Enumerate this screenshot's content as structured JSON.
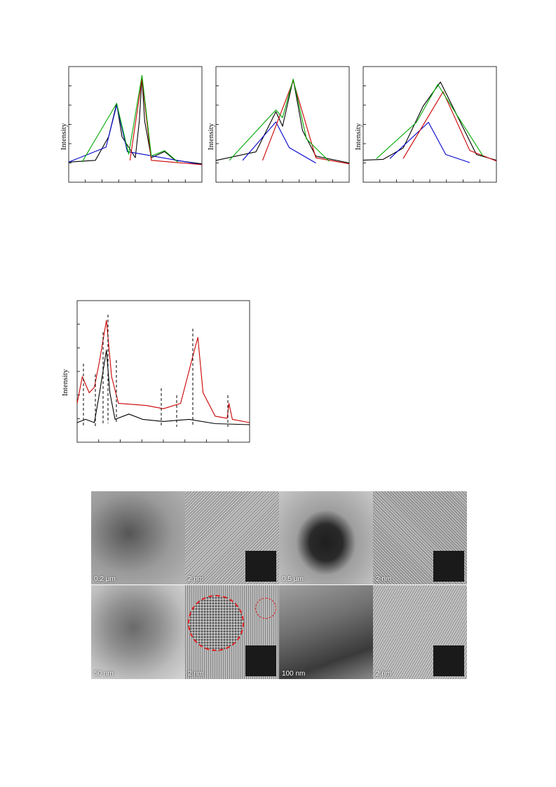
{
  "chart_data": [
    {
      "type": "line",
      "ylabel": "Intensity",
      "series": [
        {
          "color": "#000000",
          "values": [
            [
              0,
              0.03
            ],
            [
              0.2,
              0.05
            ],
            [
              0.3,
              0.32
            ],
            [
              0.36,
              0.7
            ],
            [
              0.4,
              0.32
            ],
            [
              0.5,
              0.08
            ],
            [
              0.53,
              0.5
            ],
            [
              0.55,
              1.0
            ],
            [
              0.57,
              0.5
            ],
            [
              0.62,
              0.08
            ],
            [
              0.72,
              0.15
            ],
            [
              0.8,
              0.05
            ],
            [
              1,
              0.01
            ]
          ]
        },
        {
          "color": "#0000cc",
          "values": [
            [
              0,
              0.03
            ],
            [
              0.28,
              0.2
            ],
            [
              0.36,
              0.68
            ],
            [
              0.44,
              0.15
            ],
            [
              1,
              0.0
            ]
          ]
        },
        {
          "color": "#cc0000",
          "values": [
            [
              0.46,
              0.05
            ],
            [
              0.55,
              0.98
            ],
            [
              0.62,
              0.05
            ],
            [
              1,
              0.0
            ]
          ]
        },
        {
          "color": "#00aa00",
          "values": [
            [
              0.1,
              0.03
            ],
            [
              0.36,
              0.7
            ],
            [
              0.45,
              0.12
            ],
            [
              0.55,
              1.02
            ],
            [
              0.62,
              0.1
            ],
            [
              0.72,
              0.16
            ],
            [
              0.82,
              0.03
            ]
          ]
        }
      ]
    },
    {
      "type": "line",
      "ylabel": "Intensity",
      "series": [
        {
          "color": "#000000",
          "values": [
            [
              0,
              0.05
            ],
            [
              0.3,
              0.15
            ],
            [
              0.45,
              0.62
            ],
            [
              0.5,
              0.45
            ],
            [
              0.58,
              1.0
            ],
            [
              0.65,
              0.4
            ],
            [
              0.75,
              0.1
            ],
            [
              1,
              0.02
            ]
          ]
        },
        {
          "color": "#0000cc",
          "values": [
            [
              0.2,
              0.05
            ],
            [
              0.45,
              0.5
            ],
            [
              0.55,
              0.2
            ],
            [
              0.75,
              0.02
            ]
          ]
        },
        {
          "color": "#cc0000",
          "values": [
            [
              0.35,
              0.05
            ],
            [
              0.58,
              0.98
            ],
            [
              0.75,
              0.08
            ],
            [
              1,
              0.01
            ]
          ]
        },
        {
          "color": "#00aa00",
          "values": [
            [
              0.1,
              0.05
            ],
            [
              0.45,
              0.64
            ],
            [
              0.5,
              0.55
            ],
            [
              0.58,
              1.0
            ],
            [
              0.68,
              0.3
            ],
            [
              0.85,
              0.04
            ]
          ]
        }
      ]
    },
    {
      "type": "line",
      "ylabel": "Intensity",
      "series": [
        {
          "color": "#000000",
          "values": [
            [
              0,
              0.03
            ],
            [
              0.15,
              0.04
            ],
            [
              0.3,
              0.18
            ],
            [
              0.45,
              0.7
            ],
            [
              0.58,
              1.0
            ],
            [
              0.7,
              0.6
            ],
            [
              0.85,
              0.1
            ],
            [
              1,
              0.03
            ]
          ]
        },
        {
          "color": "#0000cc",
          "values": [
            [
              0.2,
              0.05
            ],
            [
              0.49,
              0.5
            ],
            [
              0.62,
              0.1
            ],
            [
              0.8,
              0.0
            ]
          ]
        },
        {
          "color": "#cc0000",
          "values": [
            [
              0.3,
              0.05
            ],
            [
              0.6,
              0.88
            ],
            [
              0.8,
              0.15
            ],
            [
              1,
              0.02
            ]
          ]
        },
        {
          "color": "#00aa00",
          "values": [
            [
              0.1,
              0.05
            ],
            [
              0.4,
              0.5
            ],
            [
              0.56,
              0.97
            ],
            [
              0.7,
              0.6
            ],
            [
              0.9,
              0.08
            ]
          ]
        }
      ]
    },
    {
      "type": "line",
      "ylabel": "Intensity",
      "series": [
        {
          "color": "#cc0000",
          "values": [
            [
              0,
              0.2
            ],
            [
              0.03,
              0.45
            ],
            [
              0.07,
              0.3
            ],
            [
              0.1,
              0.35
            ],
            [
              0.13,
              0.6
            ],
            [
              0.17,
              0.98
            ],
            [
              0.2,
              0.45
            ],
            [
              0.24,
              0.2
            ],
            [
              0.4,
              0.18
            ],
            [
              0.5,
              0.15
            ],
            [
              0.6,
              0.2
            ],
            [
              0.68,
              0.7
            ],
            [
              0.7,
              0.82
            ],
            [
              0.73,
              0.3
            ],
            [
              0.8,
              0.08
            ],
            [
              0.87,
              0.06
            ],
            [
              0.88,
              0.2
            ],
            [
              0.9,
              0.05
            ],
            [
              1,
              0.02
            ]
          ]
        },
        {
          "color": "#000000",
          "values": [
            [
              0,
              0.02
            ],
            [
              0.05,
              0.05
            ],
            [
              0.1,
              0.02
            ],
            [
              0.13,
              0.3
            ],
            [
              0.15,
              0.5
            ],
            [
              0.17,
              0.7
            ],
            [
              0.19,
              0.3
            ],
            [
              0.22,
              0.05
            ],
            [
              0.3,
              0.1
            ],
            [
              0.38,
              0.05
            ],
            [
              0.5,
              0.03
            ],
            [
              0.65,
              0.05
            ],
            [
              0.8,
              0.01
            ],
            [
              1,
              0.0
            ]
          ]
        }
      ]
    }
  ],
  "tem_labels": [
    "0.2 μm",
    "2 nm",
    "0.5 μm",
    "2 nm",
    "50 nm",
    "2 nm",
    "100 nm",
    "2 nm"
  ]
}
